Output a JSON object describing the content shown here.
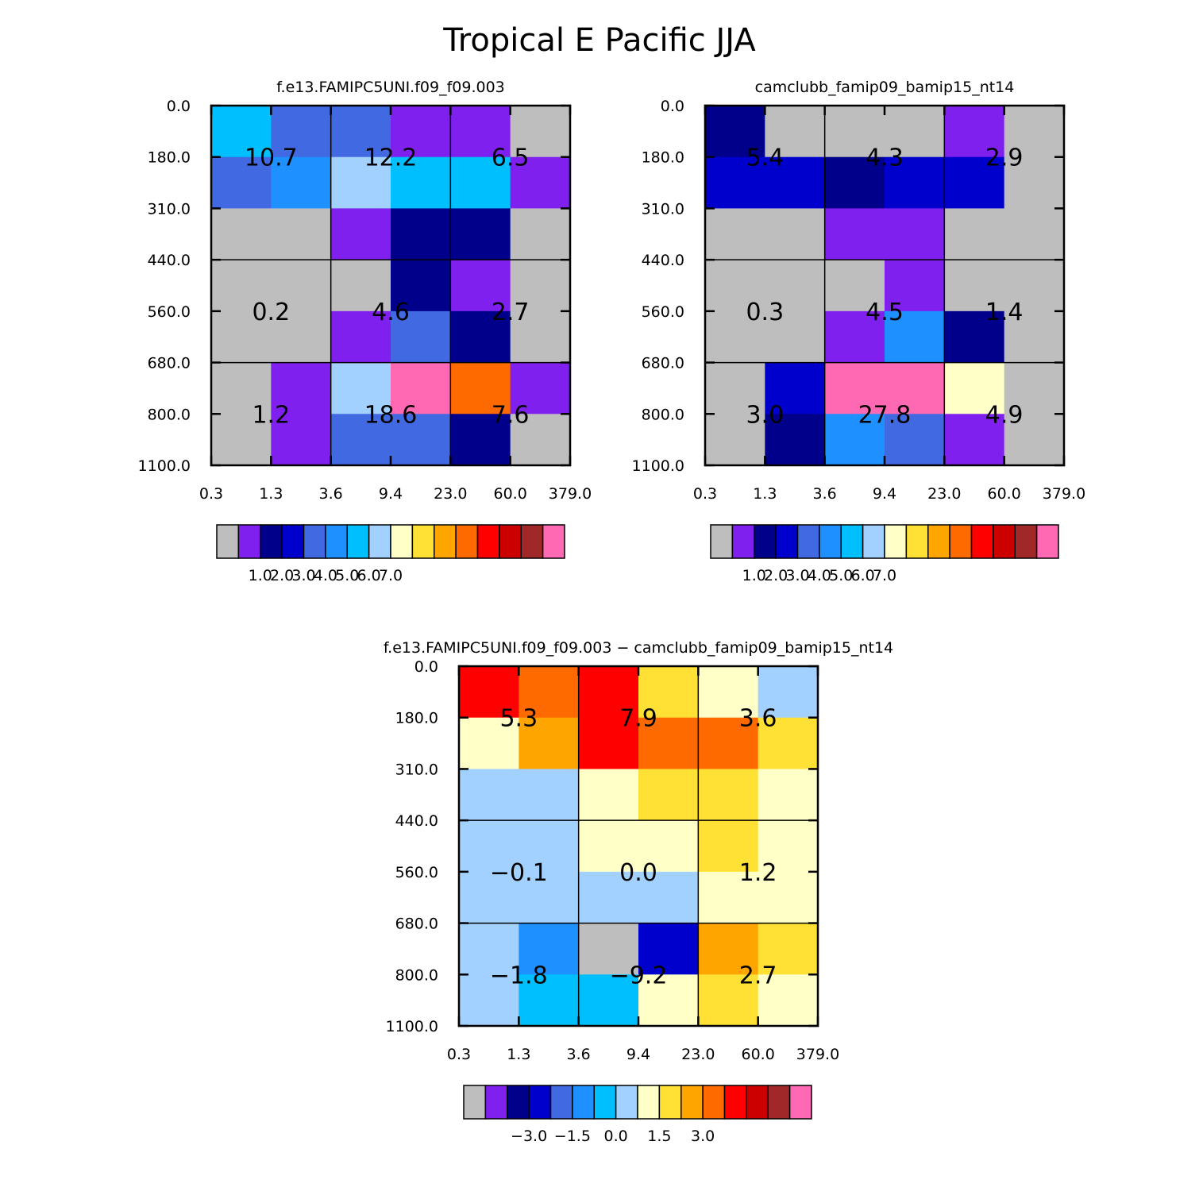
{
  "title": "Tropical E Pacific JJA",
  "chart_data": [
    {
      "type": "heatmap",
      "title": "f.e13.FAMIPC5UNI.f09_f09.003",
      "x_ticks": [
        "0.3",
        "1.3",
        "3.6",
        "9.4",
        "23.0",
        "60.0",
        "379.0"
      ],
      "y_ticks": [
        "0.0",
        "180.0",
        "310.0",
        "440.0",
        "560.0",
        "680.0",
        "800.0",
        "1100.0"
      ],
      "cell_colors": [
        [
          "#00bfff",
          "#4169e1",
          "#4169e1",
          "#8020ee",
          "#8020ee",
          "#bebebe"
        ],
        [
          "#4169e1",
          "#1e90ff",
          "#a2d0ff",
          "#00bfff",
          "#00bfff",
          "#8020ee"
        ],
        [
          "#bebebe",
          "#bebebe",
          "#8020ee",
          "#00008b",
          "#00008b",
          "#bebebe"
        ],
        [
          "#bebebe",
          "#bebebe",
          "#bebebe",
          "#00008b",
          "#8020ee",
          "#bebebe"
        ],
        [
          "#bebebe",
          "#bebebe",
          "#8020ee",
          "#4169e1",
          "#00008b",
          "#bebebe"
        ],
        [
          "#bebebe",
          "#8020ee",
          "#a2d0ff",
          "#ff69b4",
          "#ff6a00",
          "#8020ee"
        ],
        [
          "#bebebe",
          "#8020ee",
          "#4169e1",
          "#4169e1",
          "#00008b",
          "#bebebe"
        ]
      ],
      "box_values": [
        [
          "10.7",
          "12.2",
          "6.5"
        ],
        [
          "0.2",
          "4.6",
          "2.7"
        ],
        [
          "1.2",
          "18.6",
          "7.6"
        ]
      ],
      "colorbar": {
        "colors": [
          "#bebebe",
          "#8020ee",
          "#00008b",
          "#0000cd",
          "#4169e1",
          "#1e90ff",
          "#00bfff",
          "#a2d0ff",
          "#ffffc8",
          "#ffe135",
          "#ffa500",
          "#ff6a00",
          "#ff0000",
          "#cd0000",
          "#a02828",
          "#ff69b4"
        ],
        "labels": [
          "1.0",
          "2.0",
          "3.0",
          "4.0",
          "5.0",
          "6.0",
          "7.0"
        ]
      }
    },
    {
      "type": "heatmap",
      "title": "camclubb_famip09_bamip15_nt14",
      "x_ticks": [
        "0.3",
        "1.3",
        "3.6",
        "9.4",
        "23.0",
        "60.0",
        "379.0"
      ],
      "y_ticks": [
        "0.0",
        "180.0",
        "310.0",
        "440.0",
        "560.0",
        "680.0",
        "800.0",
        "1100.0"
      ],
      "cell_colors": [
        [
          "#00008b",
          "#bebebe",
          "#bebebe",
          "#bebebe",
          "#8020ee",
          "#bebebe"
        ],
        [
          "#0000cd",
          "#0000cd",
          "#00008b",
          "#0000cd",
          "#0000cd",
          "#bebebe"
        ],
        [
          "#bebebe",
          "#bebebe",
          "#8020ee",
          "#8020ee",
          "#bebebe",
          "#bebebe"
        ],
        [
          "#bebebe",
          "#bebebe",
          "#bebebe",
          "#8020ee",
          "#bebebe",
          "#bebebe"
        ],
        [
          "#bebebe",
          "#bebebe",
          "#8020ee",
          "#1e90ff",
          "#00008b",
          "#bebebe"
        ],
        [
          "#bebebe",
          "#0000cd",
          "#ff69b4",
          "#ff69b4",
          "#ffffc8",
          "#bebebe"
        ],
        [
          "#bebebe",
          "#00008b",
          "#1e90ff",
          "#4169e1",
          "#8020ee",
          "#bebebe"
        ]
      ],
      "box_values": [
        [
          "5.4",
          "4.3",
          "2.9"
        ],
        [
          "0.3",
          "4.5",
          "1.4"
        ],
        [
          "3.0",
          "27.8",
          "4.9"
        ]
      ],
      "colorbar": {
        "colors": [
          "#bebebe",
          "#8020ee",
          "#00008b",
          "#0000cd",
          "#4169e1",
          "#1e90ff",
          "#00bfff",
          "#a2d0ff",
          "#ffffc8",
          "#ffe135",
          "#ffa500",
          "#ff6a00",
          "#ff0000",
          "#cd0000",
          "#a02828",
          "#ff69b4"
        ],
        "labels": [
          "1.0",
          "2.0",
          "3.0",
          "4.0",
          "5.0",
          "6.0",
          "7.0"
        ]
      }
    },
    {
      "type": "heatmap",
      "title": "f.e13.FAMIPC5UNI.f09_f09.003 − camclubb_famip09_bamip15_nt14",
      "x_ticks": [
        "0.3",
        "1.3",
        "3.6",
        "9.4",
        "23.0",
        "60.0",
        "379.0"
      ],
      "y_ticks": [
        "0.0",
        "180.0",
        "310.0",
        "440.0",
        "560.0",
        "680.0",
        "800.0",
        "1100.0"
      ],
      "cell_colors": [
        [
          "#ff0000",
          "#ff6a00",
          "#ff0000",
          "#ffe135",
          "#ffffc8",
          "#a2d0ff"
        ],
        [
          "#ffffc8",
          "#ffa500",
          "#ff0000",
          "#ff6a00",
          "#ff6a00",
          "#ffe135"
        ],
        [
          "#a2d0ff",
          "#a2d0ff",
          "#ffffc8",
          "#ffe135",
          "#ffe135",
          "#ffffc8"
        ],
        [
          "#a2d0ff",
          "#a2d0ff",
          "#ffffc8",
          "#ffffc8",
          "#ffe135",
          "#ffffc8"
        ],
        [
          "#a2d0ff",
          "#a2d0ff",
          "#a2d0ff",
          "#a2d0ff",
          "#ffffc8",
          "#ffffc8"
        ],
        [
          "#a2d0ff",
          "#1e90ff",
          "#bebebe",
          "#0000cd",
          "#ffa500",
          "#ffe135"
        ],
        [
          "#a2d0ff",
          "#00bfff",
          "#00bfff",
          "#ffffc8",
          "#ffe135",
          "#ffffc8"
        ]
      ],
      "box_values": [
        [
          "5.3",
          "7.9",
          "3.6"
        ],
        [
          "−0.1",
          "0.0",
          "1.2"
        ],
        [
          "−1.8",
          "−9.2",
          "2.7"
        ]
      ],
      "colorbar": {
        "colors": [
          "#bebebe",
          "#8020ee",
          "#00008b",
          "#0000cd",
          "#4169e1",
          "#1e90ff",
          "#00bfff",
          "#a2d0ff",
          "#ffffc8",
          "#ffe135",
          "#ffa500",
          "#ff6a00",
          "#ff0000",
          "#cd0000",
          "#a02828",
          "#ff69b4"
        ],
        "labels": [
          "−3.0",
          "−1.5",
          "0.0",
          "1.5",
          "3.0"
        ]
      }
    }
  ]
}
